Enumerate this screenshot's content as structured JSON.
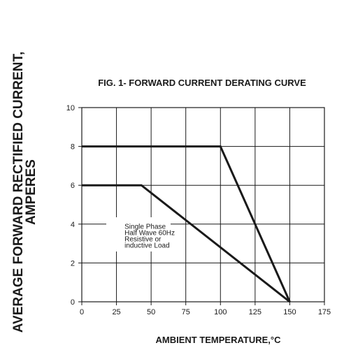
{
  "chart_data": {
    "type": "line",
    "title": "FIG. 1- FORWARD CURRENT DERATING CURVE",
    "xlabel": "AMBIENT TEMPERATURE,°C",
    "ylabel_line1": "AVERAGE FORWARD RECTIFIED CURRENT,",
    "ylabel_line2": "AMPERES",
    "xlim": [
      0,
      175
    ],
    "ylim": [
      0,
      10
    ],
    "x_ticks": [
      "0",
      "25",
      "50",
      "75",
      "100",
      "125",
      "150",
      "175"
    ],
    "y_ticks": [
      "0",
      "2",
      "4",
      "6",
      "8",
      "10"
    ],
    "grid": true,
    "series": [
      {
        "x": [
          0,
          100,
          150
        ],
        "y": [
          8,
          8,
          0
        ]
      },
      {
        "x": [
          0,
          43,
          150
        ],
        "y": [
          6,
          6,
          0
        ]
      }
    ],
    "annotation": {
      "lines": [
        "Single Phase",
        "Half Wave 60Hz",
        "Resistive or",
        "inductive Load"
      ],
      "x": 50,
      "y": 3.9
    },
    "colors": {
      "line": "#1a1a1a",
      "grid": "#1a1a1a"
    }
  }
}
